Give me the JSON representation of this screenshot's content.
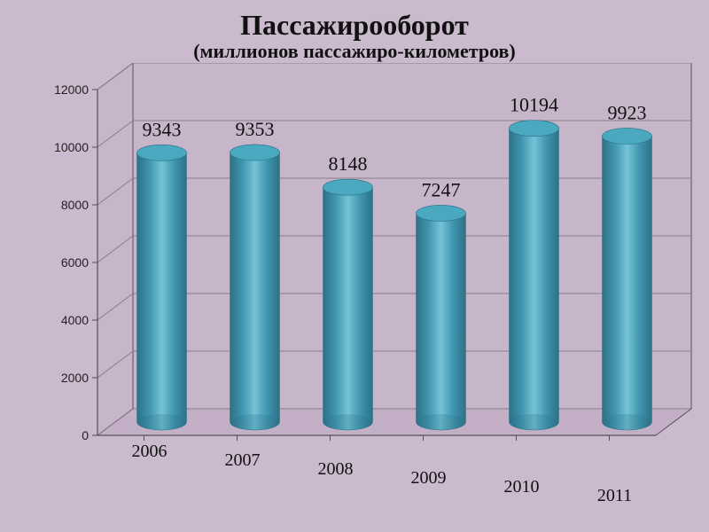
{
  "title": {
    "main": "Пассажирооборот",
    "sub": "(миллионов пассажиро-километров)"
  },
  "chart": {
    "type": "3d-cylinder-bar",
    "categories": [
      "2006",
      "2007",
      "2008",
      "2009",
      "2010",
      "2011"
    ],
    "values": [
      9343,
      9353,
      8148,
      7247,
      10194,
      9923
    ],
    "bar_fill": "#3f96ae",
    "bar_side_shadow": "#2d7187",
    "bar_highlight": "#75c3d7",
    "bar_top_fill": "#4aa8bf",
    "background_color": "#cbb9cd",
    "back_wall_color": "#c7b5ca",
    "floor_color": "#c3b0c6",
    "axis_color": "#5a4d5c",
    "grid_color": "#8a7d8c",
    "ylim": [
      0,
      12000
    ],
    "ytick_step": 2000,
    "yticks": [
      0,
      2000,
      4000,
      6000,
      8000,
      10000,
      12000
    ],
    "ytick_fontsize": 14,
    "value_label_fontsize": 22,
    "category_label_fontsize": 20,
    "title_fontsize": 32,
    "subtitle_fontsize": 22,
    "cylinder_radius_x": 28,
    "cylinder_radius_y": 9,
    "depth_x": 40,
    "depth_y": 30
  }
}
